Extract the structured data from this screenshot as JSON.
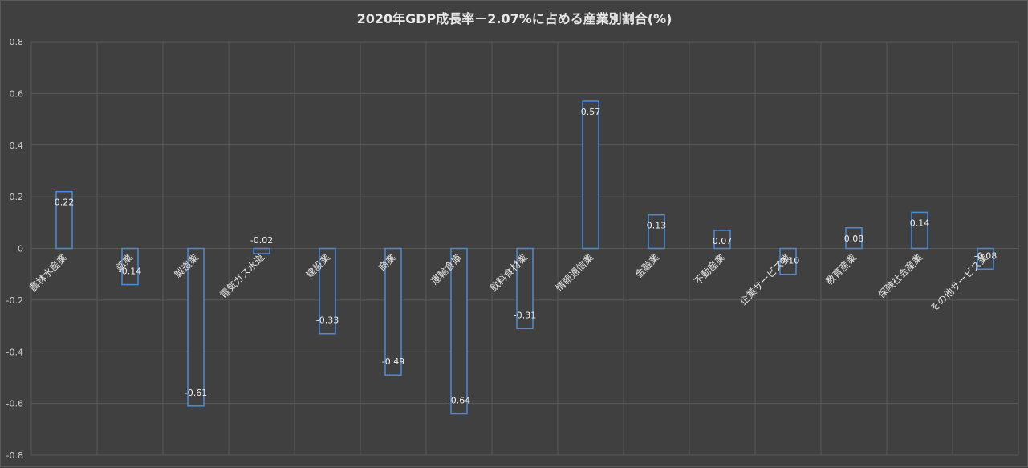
{
  "chart_data": {
    "type": "bar",
    "title": "2020年GDP成長率－2.07%に占める産業別割合(%)",
    "xlabel": "",
    "ylabel": "",
    "ylim": [
      -0.8,
      0.8
    ],
    "yticks": [
      0.8,
      0.6,
      0.4,
      0.2,
      0,
      -0.2,
      -0.4,
      -0.6,
      -0.8
    ],
    "ytick_labels": [
      "0.8",
      "0.6",
      "0.4",
      "0.2",
      "0",
      "-0.2",
      "-0.4",
      "-0.6",
      "-0.8"
    ],
    "grid": true,
    "categories": [
      "農林水産業",
      "鉱業",
      "製造業",
      "電気ガス水道",
      "建設業",
      "商業",
      "運輸倉庫",
      "飲料食材業",
      "情報通信業",
      "金融業",
      "不動産業",
      "企業サービス業",
      "教育産業",
      "保険社会産業",
      "その他サービス業"
    ],
    "values": [
      0.22,
      -0.14,
      -0.61,
      -0.02,
      -0.33,
      -0.49,
      -0.64,
      -0.31,
      0.57,
      0.13,
      0.07,
      -0.1,
      0.08,
      0.14,
      -0.08
    ],
    "value_labels": [
      "0.22",
      "-0.14",
      "-0.61",
      "-0.02",
      "-0.33",
      "-0.49",
      "-0.64",
      "-0.31",
      "0.57",
      "0.13",
      "0.07",
      "-0.10",
      "0.08",
      "0.14",
      "-0.08"
    ],
    "colors": {
      "bar_edge": "#4a8bdc",
      "background": "#404040",
      "grid": "#595959"
    }
  }
}
